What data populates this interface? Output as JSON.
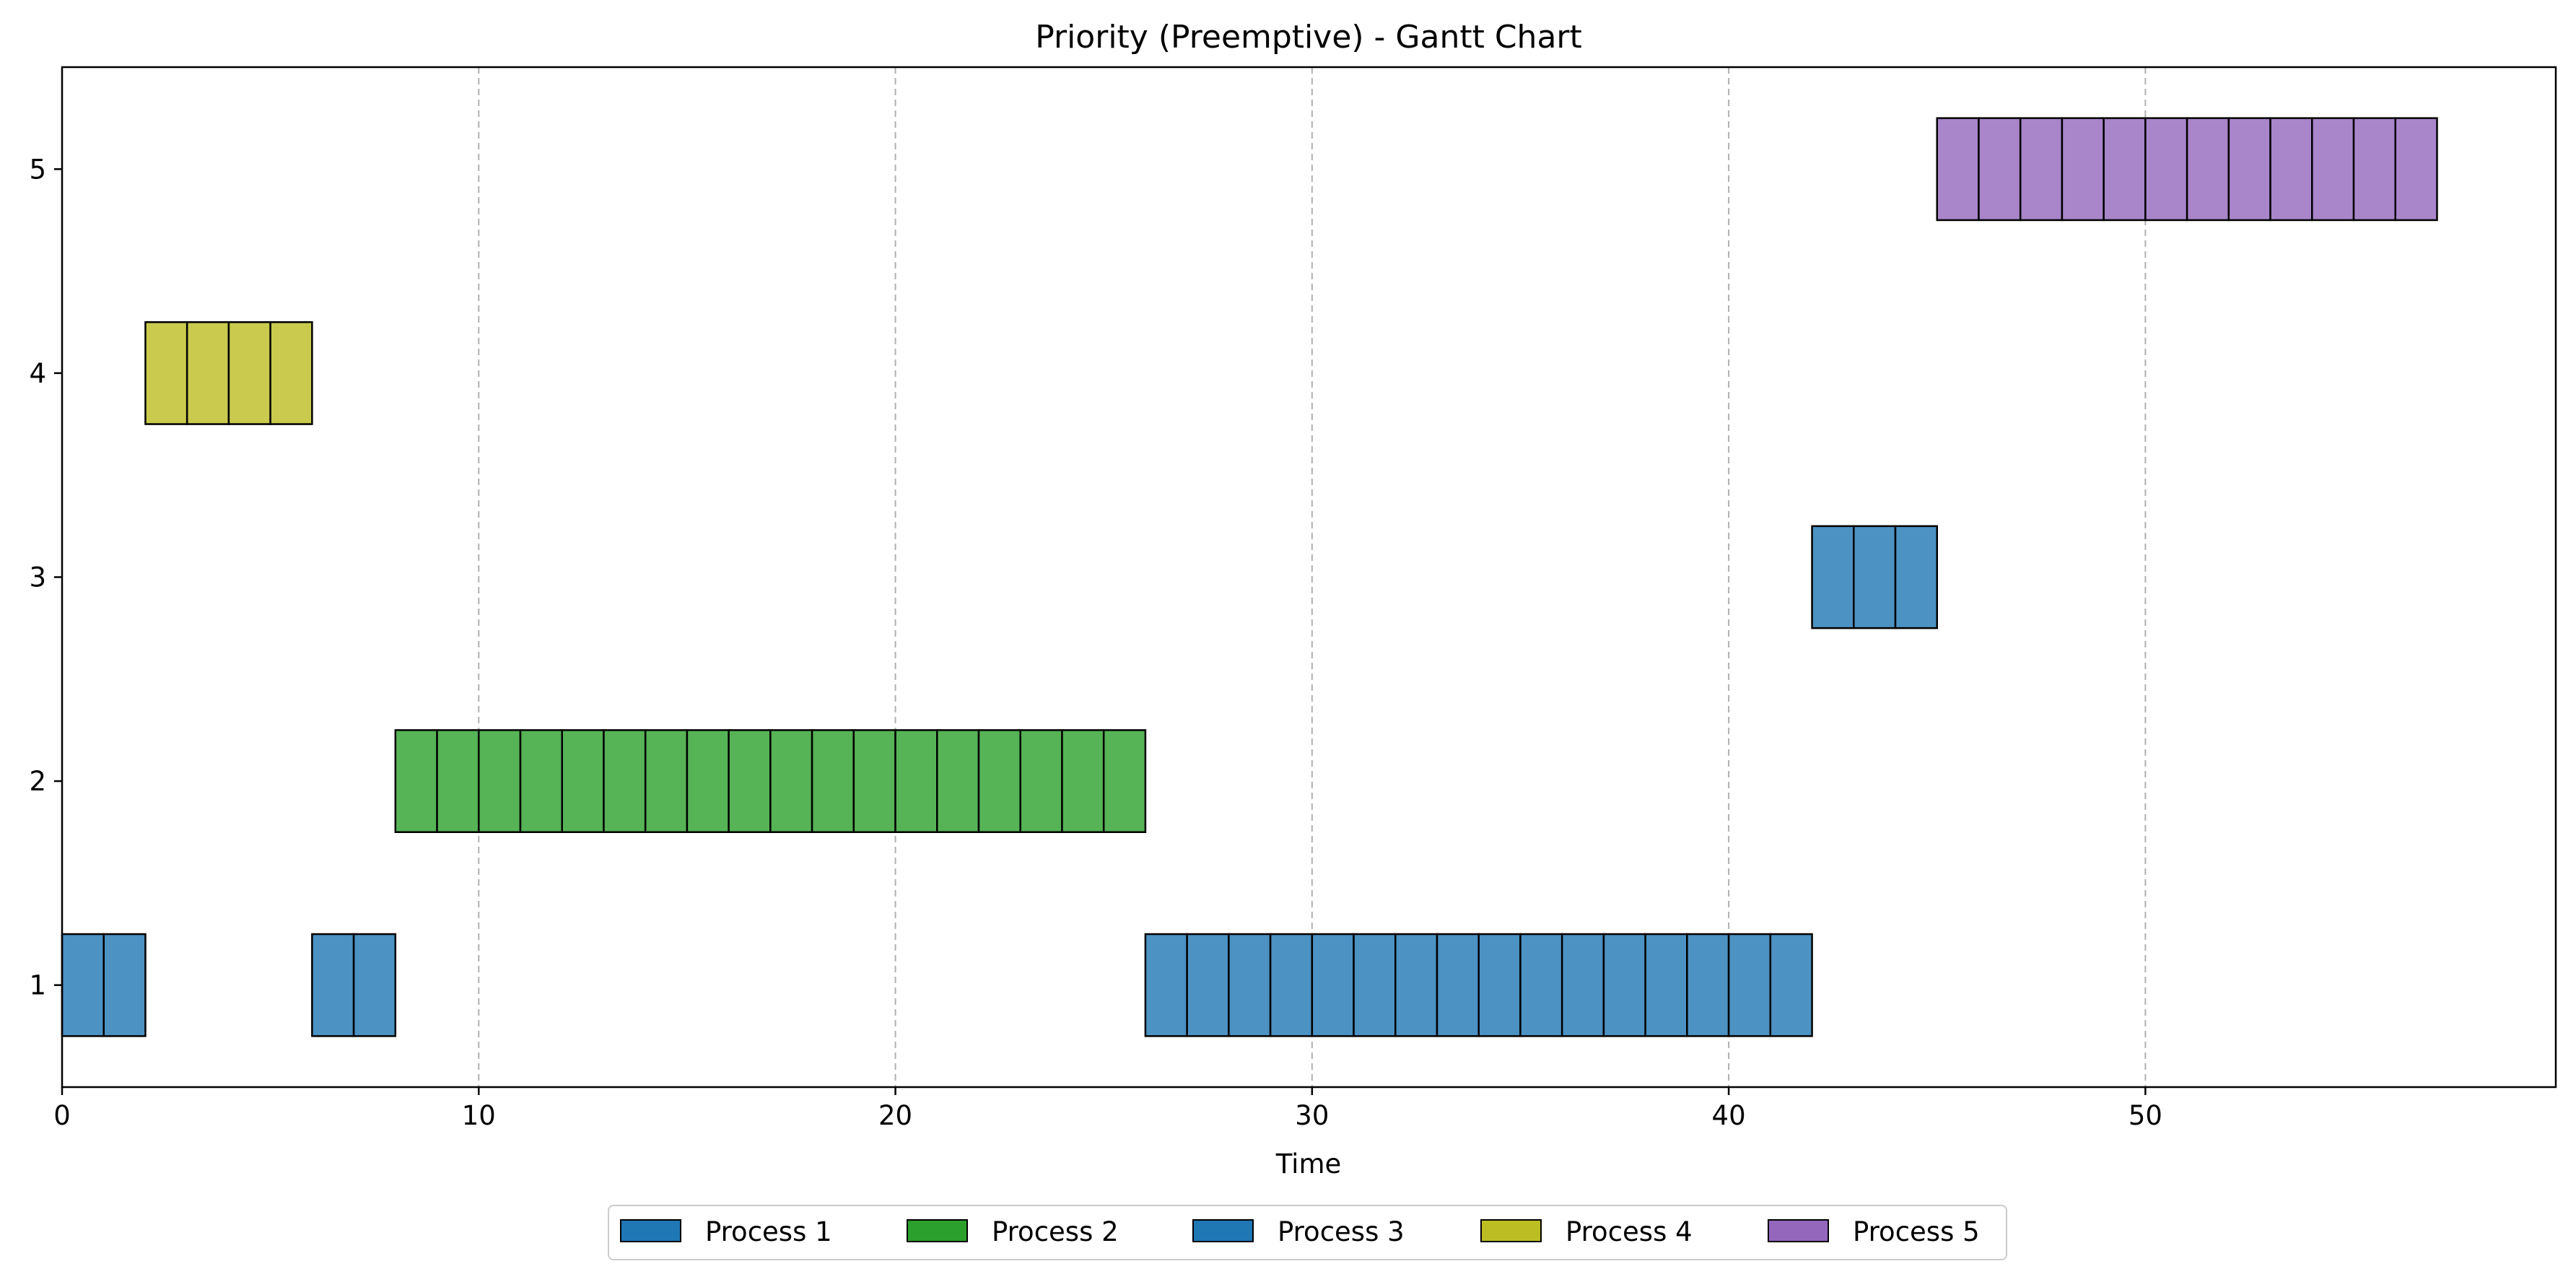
{
  "chart_data": {
    "type": "gantt",
    "title": "Priority (Preemptive) - Gantt Chart",
    "xlabel": "Time",
    "ylabel": "",
    "xlim": [
      0,
      59.85
    ],
    "ylim": [
      0.5,
      5.5
    ],
    "x_ticks": [
      0,
      10,
      20,
      30,
      40,
      50
    ],
    "y_ticks": [
      1,
      2,
      3,
      4,
      5
    ],
    "grid": "vertical dashed lines at x ticks",
    "unit_width": 1,
    "bar_height": 0.5,
    "series": [
      {
        "name": "Process 1",
        "color": "#1f77b4",
        "lane": 1,
        "intervals": [
          [
            0,
            2
          ],
          [
            6,
            8
          ],
          [
            26,
            42
          ]
        ]
      },
      {
        "name": "Process 2",
        "color": "#2ca02c",
        "lane": 2,
        "intervals": [
          [
            8,
            26
          ]
        ]
      },
      {
        "name": "Process 3",
        "color": "#1f77b4",
        "lane": 3,
        "intervals": [
          [
            42,
            45
          ]
        ]
      },
      {
        "name": "Process 4",
        "color": "#bcbd22",
        "lane": 4,
        "intervals": [
          [
            2,
            6
          ]
        ]
      },
      {
        "name": "Process 5",
        "color": "#9467bd",
        "lane": 5,
        "intervals": [
          [
            45,
            57
          ]
        ]
      }
    ],
    "legend": {
      "placement": "bottom-center",
      "entries": [
        "Process 1",
        "Process 2",
        "Process 3",
        "Process 4",
        "Process 5"
      ]
    }
  }
}
